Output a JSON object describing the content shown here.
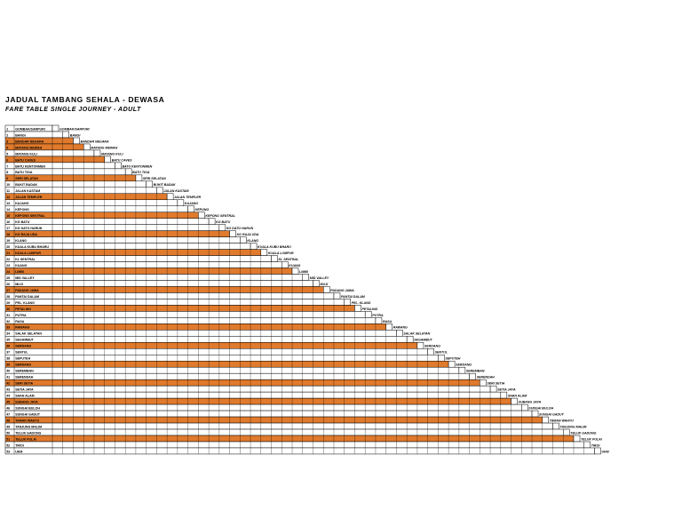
{
  "header": {
    "title": "JADUAL TAMBANG SEHALA - DEWASA",
    "subtitle": "FARE TABLE SINGLE JOURNEY - ADULT"
  },
  "colors": {
    "orange_row": "#e07a2c",
    "white_row": "#ffffff",
    "grid_line": "#000000"
  },
  "stations": [
    {
      "no": "1",
      "name": "GOMBAK/SARPURI",
      "alt": false
    },
    {
      "no": "2",
      "name": "BANGI",
      "alt": false
    },
    {
      "no": "3",
      "name": "BANDAR NEGARA",
      "alt": true
    },
    {
      "no": "4",
      "name": "MATANG MEWAH",
      "alt": true
    },
    {
      "no": "5",
      "name": "MATANG KULI",
      "alt": false
    },
    {
      "no": "6",
      "name": "BATU CAVES",
      "alt": true
    },
    {
      "no": "7",
      "name": "BATU KENTONMEN",
      "alt": false
    },
    {
      "no": "8",
      "name": "BATU TIGA",
      "alt": false
    },
    {
      "no": "9",
      "name": "SERI SELATAN",
      "alt": true
    },
    {
      "no": "10",
      "name": "BUKIT BADAK",
      "alt": false
    },
    {
      "no": "11",
      "name": "JALAN KASTAM",
      "alt": false
    },
    {
      "no": "12",
      "name": "JALAN TEMPLER",
      "alt": true
    },
    {
      "no": "13",
      "name": "KAJANG",
      "alt": false
    },
    {
      "no": "14",
      "name": "KEPONG",
      "alt": false
    },
    {
      "no": "15",
      "name": "KEPONG SENTRAL",
      "alt": true
    },
    {
      "no": "16",
      "name": "KG BATU",
      "alt": false
    },
    {
      "no": "17",
      "name": "KG DATO HARUN",
      "alt": false
    },
    {
      "no": "18",
      "name": "KG RAJA UDA",
      "alt": true
    },
    {
      "no": "19",
      "name": "KLANG",
      "alt": false
    },
    {
      "no": "20",
      "name": "KUALA KUBU BHARU",
      "alt": false
    },
    {
      "no": "21",
      "name": "KUALA LUMPUR",
      "alt": true
    },
    {
      "no": "22",
      "name": "KL SENTRAL",
      "alt": false
    },
    {
      "no": "23",
      "name": "KUANG",
      "alt": false
    },
    {
      "no": "24",
      "name": "LIMBI",
      "alt": true
    },
    {
      "no": "25",
      "name": "MID VALLEY",
      "alt": false
    },
    {
      "no": "26",
      "name": "MUJI",
      "alt": false
    },
    {
      "no": "27",
      "name": "PADANG JAWA",
      "alt": true
    },
    {
      "no": "28",
      "name": "PANTAI DALAM",
      "alt": false
    },
    {
      "no": "29",
      "name": "PEL. KLANG",
      "alt": false
    },
    {
      "no": "30",
      "name": "PETALING",
      "alt": true
    },
    {
      "no": "31",
      "name": "PUTRA",
      "alt": false
    },
    {
      "no": "32",
      "name": "RASA",
      "alt": false
    },
    {
      "no": "33",
      "name": "RAWANG",
      "alt": true
    },
    {
      "no": "34",
      "name": "SALAK SELATAN",
      "alt": false
    },
    {
      "no": "35",
      "name": "SEGAMBUT",
      "alt": false
    },
    {
      "no": "36",
      "name": "SERDANG",
      "alt": true
    },
    {
      "no": "37",
      "name": "SENTUL",
      "alt": false
    },
    {
      "no": "38",
      "name": "SEPUTEH",
      "alt": false
    },
    {
      "no": "39",
      "name": "SERDANG",
      "alt": true
    },
    {
      "no": "40",
      "name": "SEREMBAN",
      "alt": false
    },
    {
      "no": "41",
      "name": "SERENDAH",
      "alt": false
    },
    {
      "no": "42",
      "name": "SERI SETIA",
      "alt": true
    },
    {
      "no": "43",
      "name": "SETIA JAYA",
      "alt": false
    },
    {
      "no": "44",
      "name": "SHAH ALAM",
      "alt": false
    },
    {
      "no": "45",
      "name": "SUBANG JAYA",
      "alt": true
    },
    {
      "no": "46",
      "name": "SUNGAI BULOH",
      "alt": false
    },
    {
      "no": "47",
      "name": "SUNGAI GADUT",
      "alt": false
    },
    {
      "no": "48",
      "name": "TAMAN WAHYU",
      "alt": true
    },
    {
      "no": "49",
      "name": "TANJUNG MALIM",
      "alt": false
    },
    {
      "no": "50",
      "name": "TELUK GADONG",
      "alt": false
    },
    {
      "no": "51",
      "name": "TELUK PULAI",
      "alt": true
    },
    {
      "no": "52",
      "name": "TIROI",
      "alt": false
    },
    {
      "no": "53",
      "name": "UKM",
      "alt": false
    }
  ]
}
